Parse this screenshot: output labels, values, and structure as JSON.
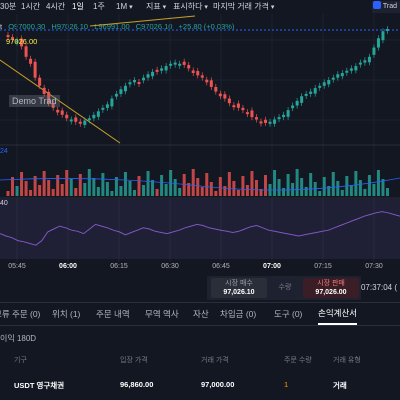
{
  "toolbar": {
    "items": [
      {
        "label": "30분",
        "dropdown": false,
        "active": false
      },
      {
        "label": "1시간",
        "dropdown": false,
        "active": false
      },
      {
        "label": "4시간",
        "dropdown": false,
        "active": false
      },
      {
        "label": "1일",
        "dropdown": false,
        "active": true
      },
      {
        "label": "1주",
        "dropdown": false,
        "active": false
      },
      {
        "label": "1M",
        "dropdown": true,
        "active": false
      },
      {
        "label": "지표",
        "dropdown": true,
        "active": false
      },
      {
        "label": "표시하다",
        "dropdown": true,
        "active": false
      },
      {
        "label": "마지막 거래 가격",
        "dropdown": true,
        "active": false
      }
    ],
    "trade_button_label": "Trad"
  },
  "ohlc": {
    "symbol_fragment": "t",
    "open": "O97000.30",
    "high": "H97026.10",
    "low": "L96991.00",
    "close": "C97026.10",
    "change": "+25.80 (+0.03%)"
  },
  "price_tag": "97026.00",
  "overlay_label": "Demo Trad",
  "volume_indicator_value": "24",
  "rsi_indicator_value": "40",
  "time_axis": [
    {
      "label": "05:45",
      "bold": false
    },
    {
      "label": "06:00",
      "bold": true
    },
    {
      "label": "06:15",
      "bold": false
    },
    {
      "label": "06:30",
      "bold": false
    },
    {
      "label": "06:45",
      "bold": false
    },
    {
      "label": "07:00",
      "bold": true
    },
    {
      "label": "07:15",
      "bold": false
    },
    {
      "label": "07:30",
      "bold": false
    }
  ],
  "trade_panel": {
    "sell_label": "시장 매수",
    "sell_price": "97,026.10",
    "quantity_label": "수량",
    "buy_label": "시장 판매",
    "buy_price": "97,026.00"
  },
  "clock": "07:37:04 (",
  "tabs": [
    {
      "label": "보류 주문 (0)",
      "active": false
    },
    {
      "label": "위치 (1)",
      "active": false
    },
    {
      "label": "주문 내역",
      "active": false
    },
    {
      "label": "무역 역사",
      "active": false
    },
    {
      "label": "자산",
      "active": false
    },
    {
      "label": "차입금 (0)",
      "active": false
    },
    {
      "label": "도구 (0)",
      "active": false
    },
    {
      "label": "손익계산서",
      "active": true
    }
  ],
  "pnl_subtitle": "이익 180D",
  "table": {
    "headers": [
      "기구",
      "입장 가격",
      "거래 가격",
      "주문 수량",
      "거래 유형"
    ],
    "row": {
      "instrument": "USDT 영구채권",
      "entry_price": "96,860.00",
      "trade_price": "97,000.00",
      "quantity": "1",
      "trade_type": "거래"
    }
  },
  "colors": {
    "up": "#26a69a",
    "down": "#ef5350",
    "background": "#131722",
    "rsi_line": "#7e57c2",
    "price_line": "#2962ff"
  },
  "chart_data": {
    "type": "candlestick",
    "x_tick_labels": [
      "05:45",
      "06:00",
      "06:15",
      "06:30",
      "06:45",
      "07:00",
      "07:15",
      "07:30"
    ],
    "last_price": 97026.1,
    "open": 97000.3,
    "high": 97026.1,
    "low": 96991.0,
    "close": 97026.1,
    "candle_trend": [
      0.13,
      0.15,
      0.16,
      0.21,
      0.3,
      0.36,
      0.48,
      0.55,
      0.62,
      0.7,
      0.74,
      0.78,
      0.8,
      0.83,
      0.84,
      0.86,
      0.87,
      0.85,
      0.83,
      0.8,
      0.77,
      0.74,
      0.71,
      0.66,
      0.62,
      0.58,
      0.55,
      0.52,
      0.5,
      0.52,
      0.48,
      0.45,
      0.43,
      0.42,
      0.4,
      0.38,
      0.36,
      0.35,
      0.36,
      0.37,
      0.4,
      0.44,
      0.46,
      0.48,
      0.52,
      0.56,
      0.6,
      0.64,
      0.66,
      0.7,
      0.72,
      0.74,
      0.76,
      0.78,
      0.82,
      0.84,
      0.86,
      0.87,
      0.86,
      0.84,
      0.82,
      0.8,
      0.76,
      0.72,
      0.68,
      0.64,
      0.62,
      0.6,
      0.57,
      0.55,
      0.52,
      0.5,
      0.48,
      0.45,
      0.44,
      0.42,
      0.4,
      0.38,
      0.35,
      0.33,
      0.3,
      0.22,
      0.14,
      0.08,
      0.06
    ],
    "rsi": [
      42,
      38,
      35,
      30,
      28,
      25,
      22,
      30,
      45,
      50,
      55,
      52,
      48,
      46,
      42,
      50,
      58,
      55,
      52,
      48,
      45,
      40,
      44,
      48,
      52,
      50,
      46,
      44,
      42,
      45,
      48,
      52,
      55,
      58,
      56,
      52,
      50,
      48,
      46,
      44,
      46,
      50,
      54,
      56,
      52,
      48,
      46,
      44,
      42,
      40,
      38,
      40,
      42,
      44,
      46,
      48,
      52,
      56,
      60,
      64,
      68,
      72,
      75,
      78,
      80,
      78,
      75,
      72
    ]
  }
}
